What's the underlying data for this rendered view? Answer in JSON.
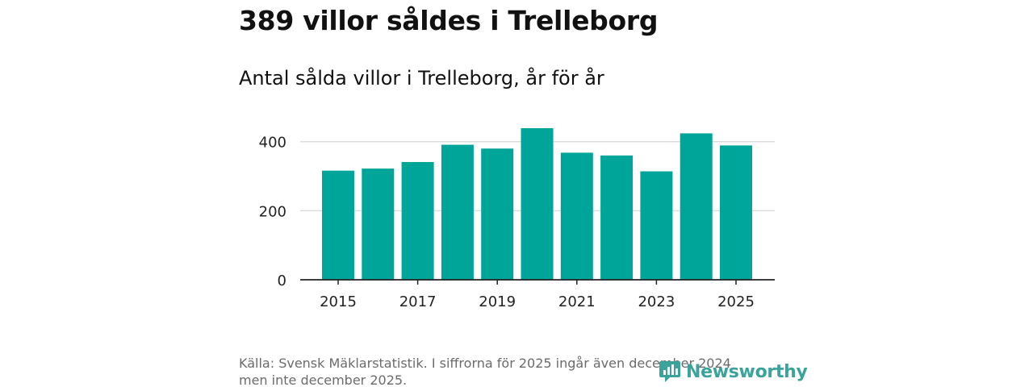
{
  "header": {
    "title": "389 villor såldes i Trelleborg",
    "subtitle": "Antal sålda villor i Trelleborg, år för år"
  },
  "chart_data": {
    "type": "bar",
    "title": "Antal sålda villor i Trelleborg, år för år",
    "xlabel": "",
    "ylabel": "",
    "categories": [
      "2015",
      "2016",
      "2017",
      "2018",
      "2019",
      "2020",
      "2021",
      "2022",
      "2023",
      "2024",
      "2025"
    ],
    "values": [
      316,
      322,
      341,
      391,
      380,
      439,
      368,
      360,
      314,
      424,
      389
    ],
    "x_tick_labels": [
      "2015",
      "2017",
      "2019",
      "2021",
      "2023",
      "2025"
    ],
    "y_ticks": [
      0,
      200,
      400
    ],
    "ylim": [
      0,
      460
    ],
    "grid": true,
    "bar_color": "#00a59a"
  },
  "footer": {
    "source_line1": "Källa: Svensk Mäklarstatistik. I siffrorna för 2025 ingår även december 2024",
    "source_line2": "men inte december 2025.",
    "logo_text": "Newsworthy",
    "logo_icon": "newsworthy-logo-icon"
  },
  "colors": {
    "bar": "#00a59a",
    "logo": "#3aa39a",
    "source": "#6b6b6b"
  }
}
